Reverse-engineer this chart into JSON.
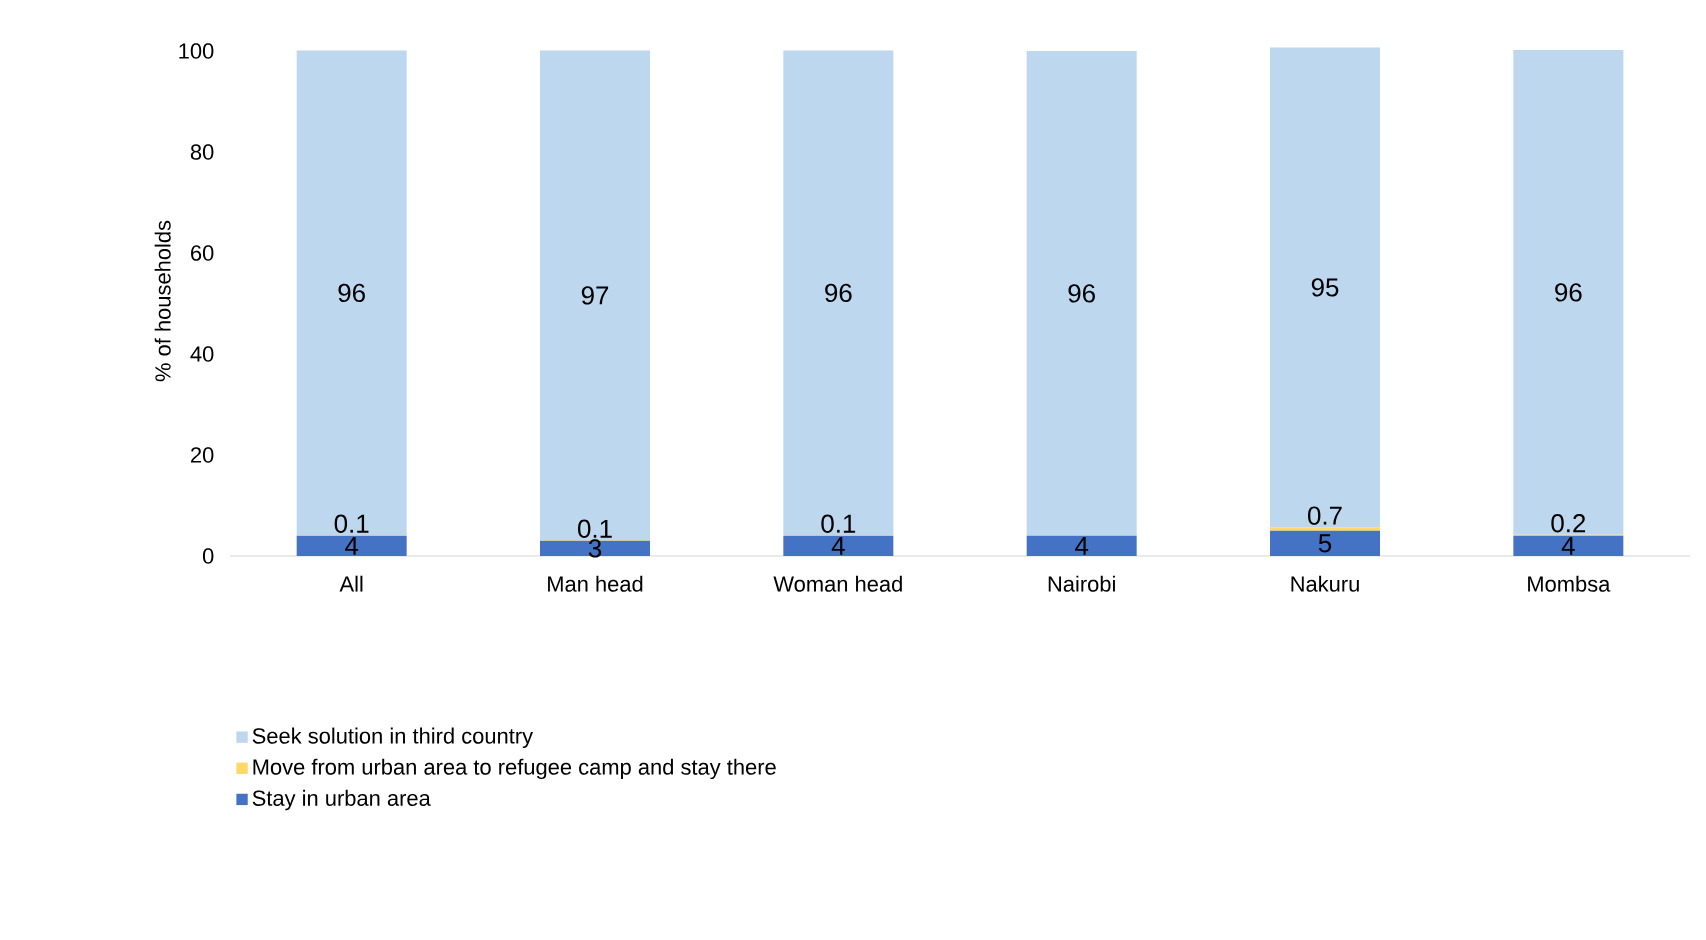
{
  "chart_data": {
    "type": "bar",
    "stacked": true,
    "ylabel": "% of households",
    "categories": [
      "All",
      "Man head",
      "Woman head",
      "Nairobi",
      "Nakuru",
      "Mombsa"
    ],
    "series": [
      {
        "name": "Stay in urban area",
        "color": "#4472c4",
        "values": [
          4,
          3,
          4,
          4,
          5,
          4
        ],
        "value_labels": [
          "4",
          "3",
          "4",
          "4",
          "5",
          "4"
        ]
      },
      {
        "name": "Move from urban area to refugee camp and stay there",
        "color": "#ffd966",
        "values": [
          0.1,
          0.1,
          0.1,
          null,
          0.7,
          0.2
        ],
        "value_labels": [
          "0.1",
          "0.1",
          "0.1",
          null,
          "0.7",
          "0.2"
        ]
      },
      {
        "name": "Seek solution in third country",
        "color": "#bdd7ee",
        "values": [
          96,
          97,
          96,
          96,
          95,
          96
        ],
        "value_labels": [
          "96",
          "97",
          "96",
          "96",
          "95",
          "96"
        ]
      }
    ],
    "ylim": [
      0,
      101
    ],
    "yticks": [
      0,
      20,
      40,
      60,
      80,
      100
    ],
    "grid": false,
    "legend": "bottom"
  }
}
